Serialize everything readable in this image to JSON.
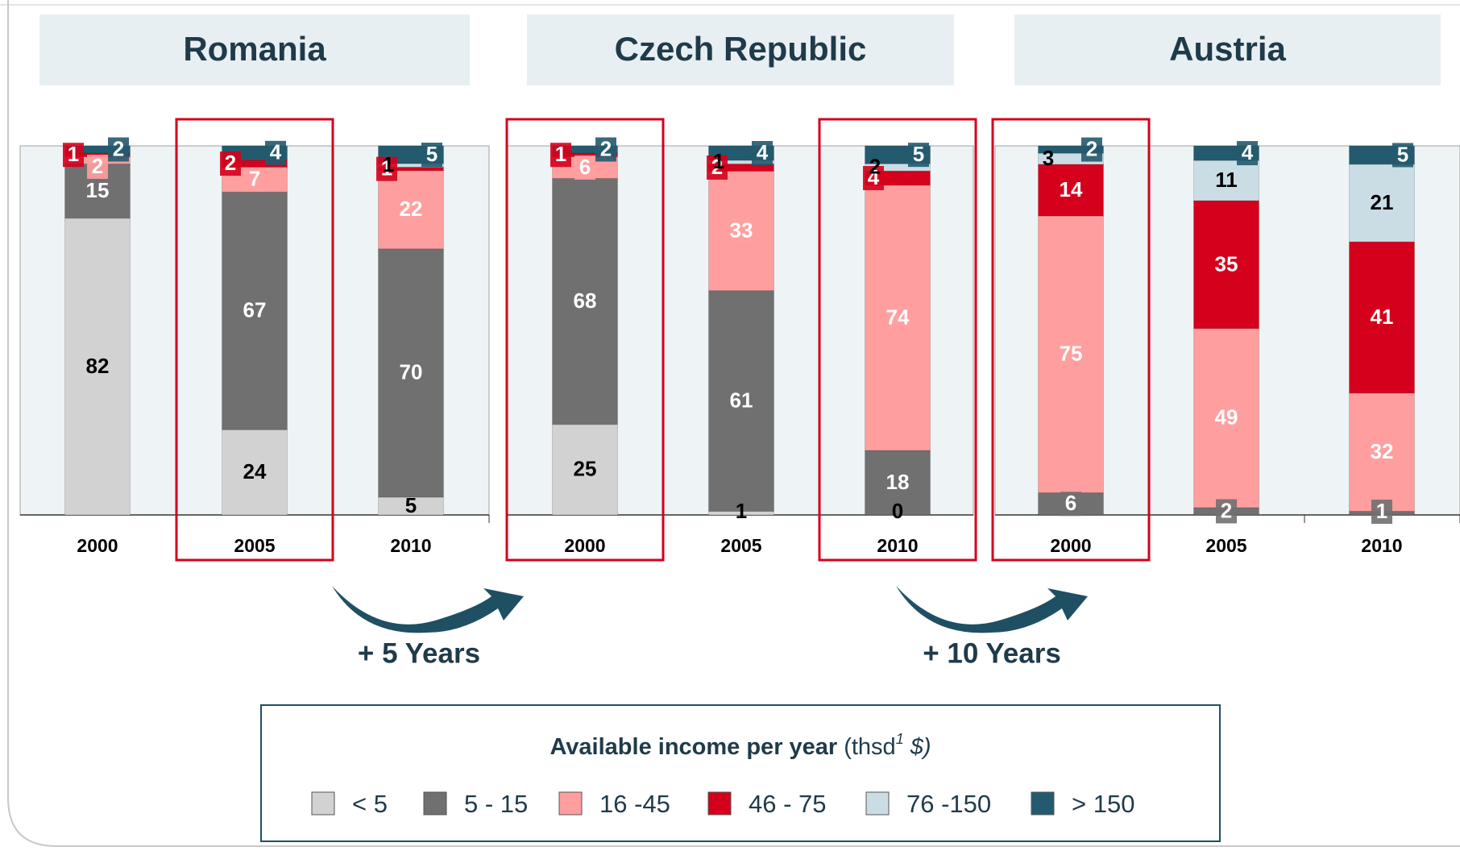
{
  "chart_data": {
    "type": "stacked_bar",
    "series": [
      {
        "name": "< 5",
        "color": "#d2d2d2",
        "text": "#000000"
      },
      {
        "name": "5 - 15",
        "color": "#707070",
        "text": "#ffffff"
      },
      {
        "name": "16 -45",
        "color": "#ff9e9e",
        "text": "#ffffff"
      },
      {
        "name": "46 - 75",
        "color": "#d5001c",
        "text": "#ffffff"
      },
      {
        "name": "76 -150",
        "color": "#cadde5",
        "text": "#000000"
      },
      {
        "name": "> 150",
        "color": "#245a6e",
        "text": "#ffffff"
      }
    ],
    "panels": [
      {
        "title": "Romania",
        "categories": [
          "2000",
          "2005",
          "2010"
        ],
        "values": [
          [
            82,
            24,
            5
          ],
          [
            15,
            67,
            70
          ],
          [
            2,
            7,
            22
          ],
          [
            1,
            2,
            1
          ],
          [
            null,
            null,
            1
          ],
          [
            2,
            4,
            5
          ]
        ],
        "highlight": [
          false,
          true,
          false
        ]
      },
      {
        "title": "Czech Republic",
        "categories": [
          "2000",
          "2005",
          "2010"
        ],
        "values": [
          [
            25,
            1,
            0
          ],
          [
            68,
            61,
            18
          ],
          [
            6,
            33,
            74
          ],
          [
            1,
            2,
            4
          ],
          [
            null,
            1,
            2
          ],
          [
            2,
            4,
            5
          ]
        ],
        "highlight": [
          true,
          false,
          true
        ]
      },
      {
        "title": "Austria",
        "categories": [
          "2000",
          "2005",
          "2010"
        ],
        "values": [
          [
            null,
            null,
            null
          ],
          [
            6,
            2,
            1
          ],
          [
            75,
            49,
            32
          ],
          [
            14,
            35,
            41
          ],
          [
            3,
            11,
            21
          ],
          [
            2,
            4,
            5
          ]
        ],
        "highlight": [
          true,
          false,
          false
        ]
      }
    ],
    "annotations": [
      "+ 5 Years",
      "+ 10 Years"
    ],
    "legend_title": "Available income per year",
    "legend_unit": [
      "(thsd",
      "1",
      " $)"
    ]
  }
}
